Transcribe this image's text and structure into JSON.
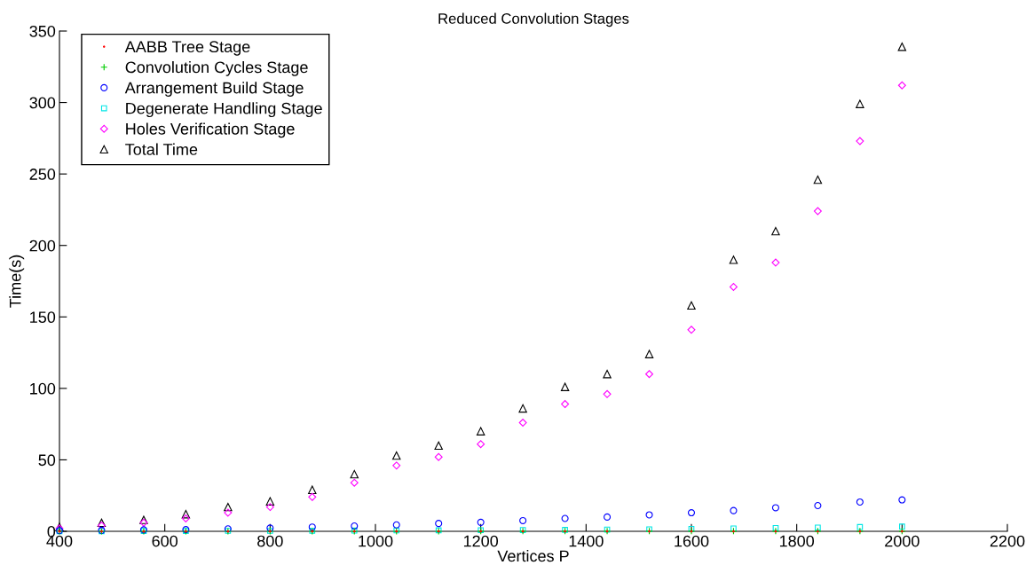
{
  "chart_data": {
    "type": "scatter",
    "title": "Reduced Convolution Stages",
    "xlabel": "Vertices P",
    "ylabel": "Time(s)",
    "x": [
      400,
      480,
      560,
      640,
      720,
      800,
      880,
      960,
      1040,
      1120,
      1200,
      1280,
      1360,
      1440,
      1520,
      1600,
      1680,
      1760,
      1840,
      1920,
      2000
    ],
    "xlim": [
      400,
      2200
    ],
    "xticks": [
      400,
      600,
      800,
      1000,
      1200,
      1400,
      1600,
      1800,
      2000,
      2200
    ],
    "ylim": [
      0,
      350
    ],
    "yticks": [
      0,
      50,
      100,
      150,
      200,
      250,
      300,
      350
    ],
    "grid": false,
    "legend": "top left",
    "series": [
      {
        "name": "AABB Tree Stage",
        "color": "#ff0000",
        "marker": "point",
        "values": [
          0,
          0,
          0,
          0,
          0,
          0,
          0,
          0,
          0,
          0,
          0,
          0,
          0,
          0,
          0,
          0,
          0,
          0,
          0,
          0,
          0
        ]
      },
      {
        "name": "Convolution Cycles Stage",
        "color": "#00cc00",
        "marker": "plus",
        "values": [
          0,
          0,
          0,
          0,
          0,
          0,
          0,
          0,
          0,
          0,
          0.1,
          0.1,
          0.1,
          0.1,
          0.1,
          0.1,
          0.1,
          0.1,
          0.1,
          0.1,
          0.1
        ]
      },
      {
        "name": "Arrangement Build Stage",
        "color": "#0000ff",
        "marker": "circle",
        "values": [
          0.5,
          0.7,
          1,
          1.2,
          1.7,
          2.3,
          3,
          3.7,
          4.5,
          5.5,
          6.3,
          7.5,
          9,
          10,
          11.5,
          13,
          14.5,
          16.5,
          18,
          20.5,
          22
        ]
      },
      {
        "name": "Degenerate Handling Stage",
        "color": "#00e5e5",
        "marker": "square",
        "values": [
          0.1,
          0.1,
          0.2,
          0.2,
          0.3,
          0.3,
          0.4,
          0.5,
          0.6,
          0.7,
          0.8,
          0.9,
          1,
          1.2,
          1.4,
          1.7,
          2,
          2.3,
          2.6,
          3,
          3.3
        ]
      },
      {
        "name": "Holes Verification Stage",
        "color": "#ff00ff",
        "marker": "diamond",
        "values": [
          2,
          4,
          6,
          9,
          13,
          17,
          24,
          34,
          46,
          52,
          61,
          76,
          89,
          96,
          110,
          141,
          171,
          188,
          224,
          273,
          312
        ]
      },
      {
        "name": "Total Time",
        "color": "#000000",
        "marker": "triangle",
        "values": [
          3,
          6,
          8,
          12,
          17,
          21,
          29,
          40,
          53,
          60,
          70,
          86,
          101,
          110,
          124,
          158,
          190,
          210,
          246,
          299,
          339
        ]
      }
    ]
  }
}
